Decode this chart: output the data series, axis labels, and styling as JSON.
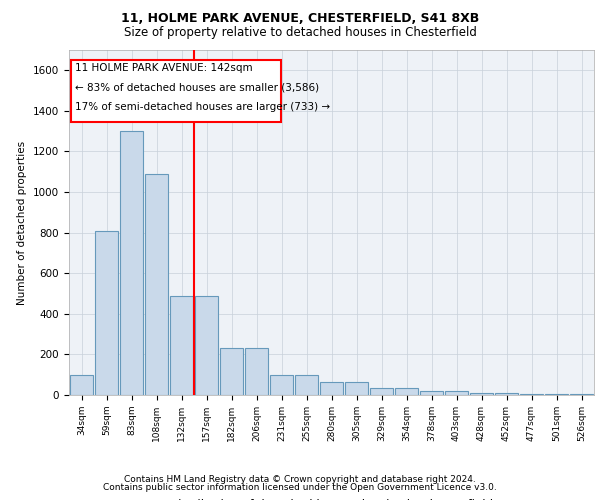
{
  "title1": "11, HOLME PARK AVENUE, CHESTERFIELD, S41 8XB",
  "title2": "Size of property relative to detached houses in Chesterfield",
  "xlabel": "Distribution of detached houses by size in Chesterfield",
  "ylabel": "Number of detached properties",
  "footer1": "Contains HM Land Registry data © Crown copyright and database right 2024.",
  "footer2": "Contains public sector information licensed under the Open Government Licence v3.0.",
  "annotation_line1": "11 HOLME PARK AVENUE: 142sqm",
  "annotation_line2": "← 83% of detached houses are smaller (3,586)",
  "annotation_line3": "17% of semi-detached houses are larger (733) →",
  "bar_color": "#c9d9ea",
  "bar_edge_color": "#6699bb",
  "redline_x": 4.5,
  "categories": [
    "34sqm",
    "59sqm",
    "83sqm",
    "108sqm",
    "132sqm",
    "157sqm",
    "182sqm",
    "206sqm",
    "231sqm",
    "255sqm",
    "280sqm",
    "305sqm",
    "329sqm",
    "354sqm",
    "378sqm",
    "403sqm",
    "428sqm",
    "452sqm",
    "477sqm",
    "501sqm",
    "526sqm"
  ],
  "values": [
    100,
    810,
    1300,
    1090,
    490,
    490,
    230,
    230,
    100,
    100,
    65,
    65,
    35,
    35,
    20,
    20,
    10,
    10,
    5,
    5,
    5
  ],
  "ylim": [
    0,
    1700
  ],
  "yticks": [
    0,
    200,
    400,
    600,
    800,
    1000,
    1200,
    1400,
    1600
  ],
  "grid_color": "#c8d0da",
  "background_color": "#eef2f7"
}
